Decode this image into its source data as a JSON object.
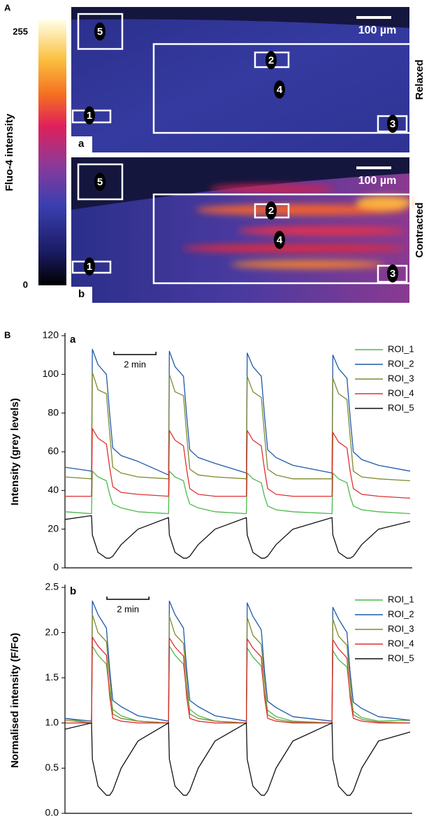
{
  "panel_a": {
    "label": "A",
    "colorbar": {
      "title": "Fluo-4 intensity",
      "lim": [
        0,
        255
      ],
      "ticks": [
        0,
        255
      ]
    },
    "images": [
      {
        "label": "a",
        "condition": "Relaxed",
        "scalebar": "100 µm",
        "rois": [
          "1",
          "2",
          "3",
          "4",
          "5"
        ]
      },
      {
        "label": "b",
        "condition": "Contracted",
        "scalebar": "100 µm",
        "rois": [
          "1",
          "2",
          "3",
          "4",
          "5"
        ]
      }
    ]
  },
  "panel_b": {
    "label": "B"
  },
  "chart_data": [
    {
      "type": "line",
      "panel_label": "a",
      "y_label": "Intensity (grey levels)",
      "scalebar": {
        "value": 2,
        "label": "2 min"
      },
      "x": [
        0,
        1.26,
        1.3,
        1.57,
        1.97,
        2.12,
        2.27,
        2.67,
        3.47,
        4.92,
        4.96,
        5.23,
        5.63,
        5.78,
        5.93,
        6.33,
        7.13,
        8.62,
        8.66,
        8.93,
        9.33,
        9.48,
        9.63,
        10.03,
        10.83,
        12.69,
        12.73,
        13.0,
        13.4,
        13.55,
        13.7,
        14.1,
        14.9,
        16.4
      ],
      "xlim": [
        0,
        16.5
      ],
      "ylim": [
        0,
        120
      ],
      "yticks": [
        0,
        20,
        40,
        60,
        80,
        100,
        120
      ],
      "series": [
        {
          "name": "ROI_1",
          "color": "#4cb84c",
          "values": [
            29,
            28,
            50,
            47,
            45,
            38,
            33,
            31,
            29,
            28,
            50,
            47,
            45,
            38,
            33,
            31,
            29,
            28,
            49,
            46,
            44,
            37,
            32,
            30,
            29,
            28,
            49,
            46,
            44,
            37,
            32,
            30,
            29,
            28
          ]
        },
        {
          "name": "ROI_2",
          "color": "#1f5aa8",
          "values": [
            52,
            50,
            113,
            105,
            100,
            80,
            62,
            58,
            55,
            48,
            112,
            104,
            99,
            79,
            61,
            57,
            54,
            49,
            111,
            104,
            99,
            79,
            61,
            57,
            53,
            49,
            110,
            103,
            98,
            78,
            60,
            56,
            53,
            50
          ]
        },
        {
          "name": "ROI_3",
          "color": "#7f8a2e",
          "values": [
            47,
            46,
            101,
            92,
            90,
            70,
            52,
            49,
            47,
            46,
            100,
            91,
            89,
            69,
            51,
            48,
            47,
            46,
            99,
            91,
            88,
            69,
            51,
            48,
            46,
            46,
            98,
            90,
            87,
            68,
            50,
            47,
            46,
            45
          ]
        },
        {
          "name": "ROI_4",
          "color": "#e03030",
          "values": [
            37,
            37,
            72,
            67,
            64,
            52,
            42,
            39,
            38,
            37,
            71,
            66,
            63,
            51,
            41,
            38,
            37,
            37,
            71,
            66,
            63,
            51,
            41,
            38,
            37,
            37,
            70,
            65,
            62,
            50,
            41,
            38,
            37,
            36
          ]
        },
        {
          "name": "ROI_5",
          "color": "#111111",
          "values": [
            25,
            27,
            17,
            8,
            5,
            5,
            6,
            12,
            20,
            26,
            17,
            8,
            5,
            5,
            6,
            12,
            20,
            26,
            17,
            8,
            5,
            5,
            6,
            12,
            20,
            26,
            17,
            8,
            5,
            5,
            6,
            12,
            20,
            24
          ]
        }
      ]
    },
    {
      "type": "line",
      "panel_label": "b",
      "y_label": "Normalised intensity (F/Fo)",
      "scalebar": {
        "value": 2,
        "label": "2 min"
      },
      "x": [
        0,
        1.26,
        1.3,
        1.57,
        1.97,
        2.12,
        2.27,
        2.67,
        3.47,
        4.92,
        4.96,
        5.23,
        5.63,
        5.78,
        5.93,
        6.33,
        7.13,
        8.62,
        8.66,
        8.93,
        9.33,
        9.48,
        9.63,
        10.03,
        10.83,
        12.69,
        12.73,
        13.0,
        13.4,
        13.55,
        13.7,
        14.1,
        14.9,
        16.4
      ],
      "xlim": [
        0,
        16.5
      ],
      "ylim": [
        0,
        2.5
      ],
      "yticks": [
        {
          "value": 0,
          "label": "0.0"
        },
        0.5,
        {
          "value": 1,
          "label": "1.0"
        },
        1.5,
        {
          "value": 2,
          "label": "2.0"
        },
        2.5
      ],
      "series": [
        {
          "name": "ROI_1",
          "color": "#4cb84c",
          "values": [
            1.05,
            1.0,
            1.85,
            1.75,
            1.65,
            1.35,
            1.15,
            1.08,
            1.02,
            1.0,
            1.85,
            1.75,
            1.65,
            1.35,
            1.15,
            1.08,
            1.02,
            1.0,
            1.83,
            1.73,
            1.63,
            1.33,
            1.14,
            1.07,
            1.02,
            1.0,
            1.8,
            1.7,
            1.62,
            1.32,
            1.13,
            1.06,
            1.02,
            1.03
          ]
        },
        {
          "name": "ROI_2",
          "color": "#1f5aa8",
          "values": [
            1.05,
            1.02,
            2.35,
            2.2,
            2.05,
            1.6,
            1.25,
            1.18,
            1.08,
            1.02,
            2.35,
            2.2,
            2.05,
            1.6,
            1.25,
            1.18,
            1.08,
            1.02,
            2.33,
            2.18,
            2.03,
            1.58,
            1.24,
            1.17,
            1.07,
            1.02,
            2.28,
            2.15,
            2.0,
            1.56,
            1.23,
            1.16,
            1.07,
            1.03
          ]
        },
        {
          "name": "ROI_3",
          "color": "#7f8a2e",
          "values": [
            1.03,
            1.0,
            2.2,
            2.0,
            1.9,
            1.5,
            1.1,
            1.05,
            1.02,
            1.0,
            2.18,
            1.98,
            1.88,
            1.48,
            1.1,
            1.05,
            1.02,
            1.0,
            2.17,
            1.97,
            1.87,
            1.47,
            1.09,
            1.04,
            1.01,
            1.0,
            2.15,
            1.96,
            1.86,
            1.46,
            1.09,
            1.04,
            1.01,
            1.0
          ]
        },
        {
          "name": "ROI_4",
          "color": "#e03030",
          "values": [
            1.0,
            1.0,
            1.95,
            1.85,
            1.75,
            1.3,
            1.05,
            1.02,
            1.0,
            1.0,
            1.94,
            1.84,
            1.74,
            1.29,
            1.05,
            1.02,
            1.0,
            1.0,
            1.93,
            1.83,
            1.73,
            1.29,
            1.05,
            1.02,
            1.0,
            1.0,
            1.92,
            1.82,
            1.72,
            1.28,
            1.05,
            1.02,
            1.0,
            1.0
          ]
        },
        {
          "name": "ROI_5",
          "color": "#111111",
          "values": [
            0.93,
            1.0,
            0.6,
            0.3,
            0.2,
            0.2,
            0.25,
            0.5,
            0.8,
            1.0,
            0.6,
            0.3,
            0.2,
            0.2,
            0.25,
            0.5,
            0.8,
            1.0,
            0.6,
            0.3,
            0.2,
            0.2,
            0.25,
            0.5,
            0.8,
            1.0,
            0.6,
            0.3,
            0.2,
            0.2,
            0.25,
            0.5,
            0.8,
            0.9
          ]
        }
      ]
    }
  ]
}
